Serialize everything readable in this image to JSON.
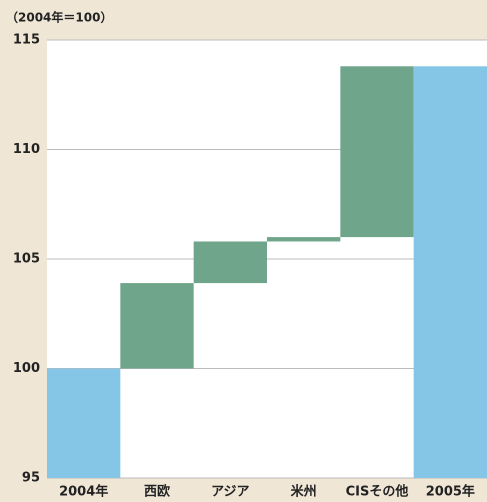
{
  "chart_data": {
    "type": "waterfall",
    "y_label": "（2004年＝100）",
    "categories": [
      "2004年",
      "西欧",
      "アジア",
      "米州",
      "CISその他",
      "2005年"
    ],
    "values": [
      100,
      3.9,
      1.9,
      0.2,
      7.8,
      113.8
    ],
    "total_color": "#85c5e6",
    "increase_color": "#6fa58a",
    "ylim": [
      95,
      115
    ],
    "yticks": [
      95,
      100,
      105,
      110,
      115
    ],
    "grid": true
  }
}
